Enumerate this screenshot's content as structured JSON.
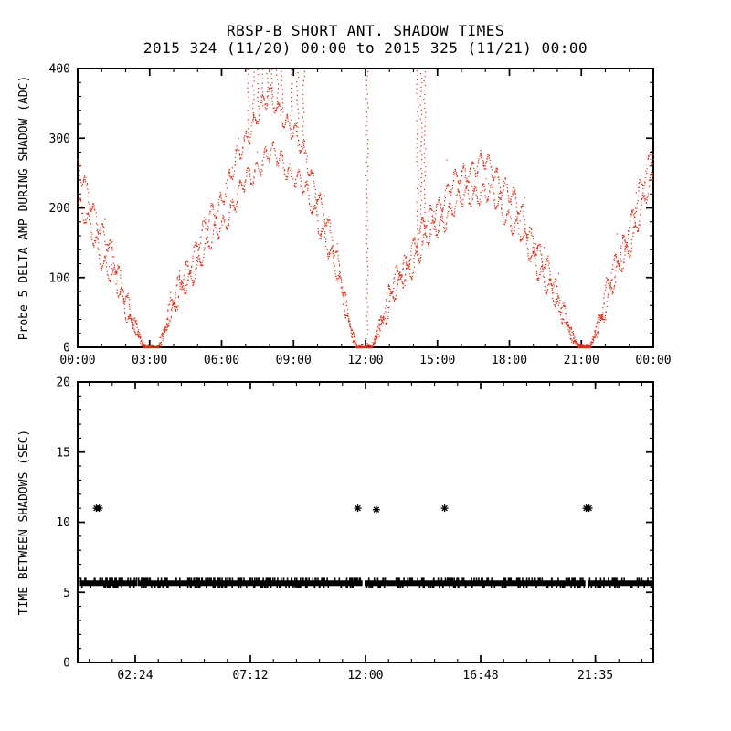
{
  "figure": {
    "title": "RBSP-B SHORT ANT. SHADOW TIMES",
    "subtitle": "2015 324 (11/20) 00:00 to 2015 325 (11/21) 00:00",
    "background": "#ffffff",
    "axis_color": "#000000",
    "text_color": "#000000"
  },
  "chart_data": [
    {
      "type": "scatter",
      "panel": "top",
      "title": "RBSP-B SHORT ANT. SHADOW TIMES",
      "subtitle": "2015 324 (11/20) 00:00 to 2015 325 (11/21) 00:00",
      "xlabel": "",
      "ylabel": "Probe 5 DELTA AMP DURING SHADOW (ADC)",
      "series_color": "#e0301a",
      "xlim": [
        0,
        24
      ],
      "ylim": [
        0,
        400
      ],
      "y_ticks": [
        0,
        100,
        200,
        300,
        400
      ],
      "y_minor_step": 20,
      "x_ticks": [
        {
          "h": 0,
          "label": "00:00"
        },
        {
          "h": 3,
          "label": "03:00"
        },
        {
          "h": 6,
          "label": "06:00"
        },
        {
          "h": 9,
          "label": "09:00"
        },
        {
          "h": 12,
          "label": "12:00"
        },
        {
          "h": 15,
          "label": "15:00"
        },
        {
          "h": 18,
          "label": "18:00"
        },
        {
          "h": 21,
          "label": "21:00"
        },
        {
          "h": 24,
          "label": "00:00"
        }
      ],
      "x_minor_step": 1,
      "wiggle": {
        "period_h": 0.35,
        "amplitude": 13
      },
      "series": [
        {
          "name": "lower-trace",
          "points": [
            [
              0,
              205
            ],
            [
              0.5,
              170
            ],
            [
              1,
              130
            ],
            [
              1.5,
              95
            ],
            [
              2,
              55
            ],
            [
              2.5,
              15
            ],
            [
              2.75,
              0
            ],
            [
              3.35,
              0
            ],
            [
              3.7,
              30
            ],
            [
              4,
              55
            ],
            [
              4.5,
              90
            ],
            [
              5,
              122
            ],
            [
              5.5,
              150
            ],
            [
              6,
              178
            ],
            [
              6.5,
              205
            ],
            [
              7,
              238
            ],
            [
              7.5,
              262
            ],
            [
              8,
              280
            ],
            [
              8.5,
              268
            ],
            [
              9,
              248
            ],
            [
              9.5,
              222
            ],
            [
              10,
              185
            ],
            [
              10.5,
              135
            ],
            [
              11,
              80
            ],
            [
              11.35,
              28
            ],
            [
              11.6,
              0
            ],
            [
              12.25,
              0
            ],
            [
              12.6,
              30
            ],
            [
              13,
              62
            ],
            [
              13.5,
              95
            ],
            [
              14,
              125
            ],
            [
              14.5,
              150
            ],
            [
              15,
              175
            ],
            [
              15.5,
              195
            ],
            [
              16,
              212
            ],
            [
              16.5,
              222
            ],
            [
              16.9,
              224
            ],
            [
              17.3,
              214
            ],
            [
              17.8,
              196
            ],
            [
              18.3,
              170
            ],
            [
              18.8,
              140
            ],
            [
              19.3,
              108
            ],
            [
              19.8,
              72
            ],
            [
              20.3,
              38
            ],
            [
              20.65,
              10
            ],
            [
              20.9,
              0
            ],
            [
              21.35,
              0
            ],
            [
              21.7,
              30
            ],
            [
              22,
              62
            ],
            [
              22.5,
              105
            ],
            [
              23,
              150
            ],
            [
              23.5,
              198
            ],
            [
              24,
              245
            ]
          ]
        },
        {
          "name": "upper-trace",
          "points": [
            [
              0,
              252
            ],
            [
              0.5,
              212
            ],
            [
              1,
              168
            ],
            [
              1.5,
              122
            ],
            [
              2,
              75
            ],
            [
              2.5,
              25
            ],
            [
              2.75,
              0
            ],
            [
              3.35,
              0
            ],
            [
              3.7,
              40
            ],
            [
              4,
              70
            ],
            [
              4.5,
              112
            ],
            [
              5,
              150
            ],
            [
              5.5,
              185
            ],
            [
              6,
              218
            ],
            [
              6.5,
              258
            ],
            [
              7,
              300
            ],
            [
              7.5,
              340
            ],
            [
              8,
              358
            ],
            [
              8.5,
              338
            ],
            [
              9,
              308
            ],
            [
              9.5,
              272
            ],
            [
              10,
              222
            ],
            [
              10.5,
              162
            ],
            [
              11,
              98
            ],
            [
              11.35,
              35
            ],
            [
              11.6,
              0
            ],
            [
              12.25,
              0
            ],
            [
              12.6,
              40
            ],
            [
              13,
              78
            ],
            [
              13.5,
              115
            ],
            [
              14,
              148
            ],
            [
              14.5,
              178
            ],
            [
              15,
              205
            ],
            [
              15.5,
              228
            ],
            [
              16,
              248
            ],
            [
              16.5,
              262
            ],
            [
              16.9,
              266
            ],
            [
              17.3,
              254
            ],
            [
              17.8,
              232
            ],
            [
              18.3,
              202
            ],
            [
              18.8,
              168
            ],
            [
              19.3,
              132
            ],
            [
              19.8,
              92
            ],
            [
              20.3,
              52
            ],
            [
              20.65,
              15
            ],
            [
              20.9,
              0
            ],
            [
              21.35,
              0
            ],
            [
              21.7,
              42
            ],
            [
              22,
              80
            ],
            [
              22.5,
              128
            ],
            [
              23,
              178
            ],
            [
              23.5,
              228
            ],
            [
              24,
              288
            ]
          ]
        }
      ],
      "spikes": {
        "to": 400,
        "at": [
          7.1,
          7.3,
          7.5,
          7.7,
          7.9,
          8.1,
          8.3,
          8.5,
          8.9,
          9.15,
          9.4,
          12.05,
          14.15,
          14.3,
          14.45
        ]
      }
    },
    {
      "type": "scatter",
      "panel": "bottom",
      "title": "",
      "xlabel": "",
      "ylabel": "TIME BETWEEN SHADOWS (SEC)",
      "marker_color": "#000000",
      "xlim": [
        0,
        24
      ],
      "ylim": [
        0,
        20
      ],
      "y_ticks": [
        0,
        5,
        10,
        15,
        20
      ],
      "y_minor_step": 1,
      "x_ticks": [
        {
          "h": 2.4,
          "label": "02:24"
        },
        {
          "h": 7.2,
          "label": "07:12"
        },
        {
          "h": 12.0,
          "label": "12:00"
        },
        {
          "h": 16.8,
          "label": "16:48"
        },
        {
          "h": 21.5833,
          "label": "21:35"
        }
      ],
      "x_minor_step": 0.96,
      "band": {
        "value_low": 5.45,
        "value_high": 5.85,
        "start_h": 0.12,
        "end_h": 23.92,
        "gaps": [
          [
            2.45,
            2.53
          ],
          [
            11.85,
            12.02
          ],
          [
            21.15,
            21.3
          ]
        ]
      },
      "outliers": [
        {
          "h": 0.78,
          "v": 11.0
        },
        {
          "h": 0.9,
          "v": 11.0
        },
        {
          "h": 11.68,
          "v": 11.0
        },
        {
          "h": 12.45,
          "v": 10.9
        },
        {
          "h": 15.3,
          "v": 11.0
        },
        {
          "h": 21.2,
          "v": 11.0
        },
        {
          "h": 21.32,
          "v": 11.0
        }
      ]
    }
  ]
}
